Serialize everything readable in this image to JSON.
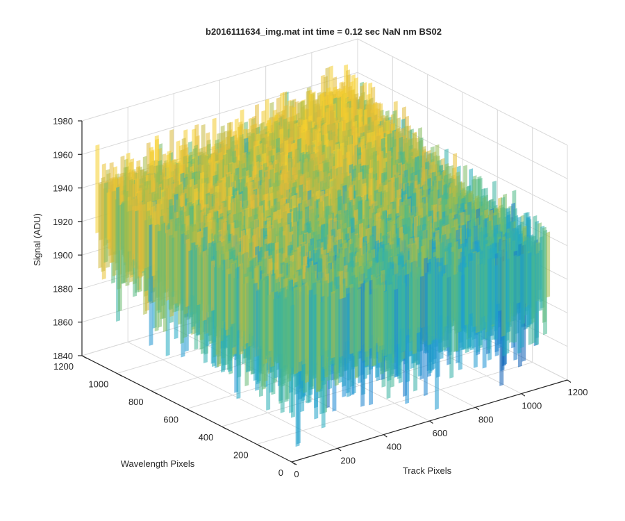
{
  "chart_data": {
    "type": "surface",
    "title": "b2016111634_img.mat int time = 0.12 sec  NaN nm BS02",
    "xlabel": "Track Pixels",
    "ylabel": "Wavelength Pixels",
    "zlabel": "Signal (ADU)",
    "xlim": [
      0,
      1200
    ],
    "ylim": [
      0,
      1200
    ],
    "zlim": [
      1840,
      1980
    ],
    "xticks": [
      0,
      200,
      400,
      600,
      800,
      1000,
      1200
    ],
    "yticks": [
      0,
      200,
      400,
      600,
      800,
      1000,
      1200
    ],
    "zticks": [
      1840,
      1860,
      1880,
      1900,
      1920,
      1940,
      1960,
      1980
    ],
    "grid": true,
    "colormap": "parula",
    "surface_extent": {
      "track_pixels": [
        0,
        1130
      ],
      "wavelength_pixels": [
        0,
        1130
      ]
    },
    "surface_mean_profile": [
      {
        "track_pixel": 0,
        "wavelength_pixel": 1130,
        "signal": 1932
      },
      {
        "track_pixel": 1130,
        "wavelength_pixel": 1130,
        "signal": 1935
      },
      {
        "track_pixel": 1130,
        "wavelength_pixel": 0,
        "signal": 1908
      },
      {
        "track_pixel": 0,
        "wavelength_pixel": 0,
        "signal": 1912
      }
    ],
    "noise_range_adu": [
      1845,
      1975
    ]
  },
  "colors": {
    "background": "#ffffff",
    "grid": "#d9d9d9",
    "axis": "#262626",
    "colormap_stops": [
      "#0f5fb4",
      "#1e8fd8",
      "#22aac3",
      "#4cb98a",
      "#9dbd4e",
      "#e0b83a",
      "#f6cf2e"
    ]
  }
}
